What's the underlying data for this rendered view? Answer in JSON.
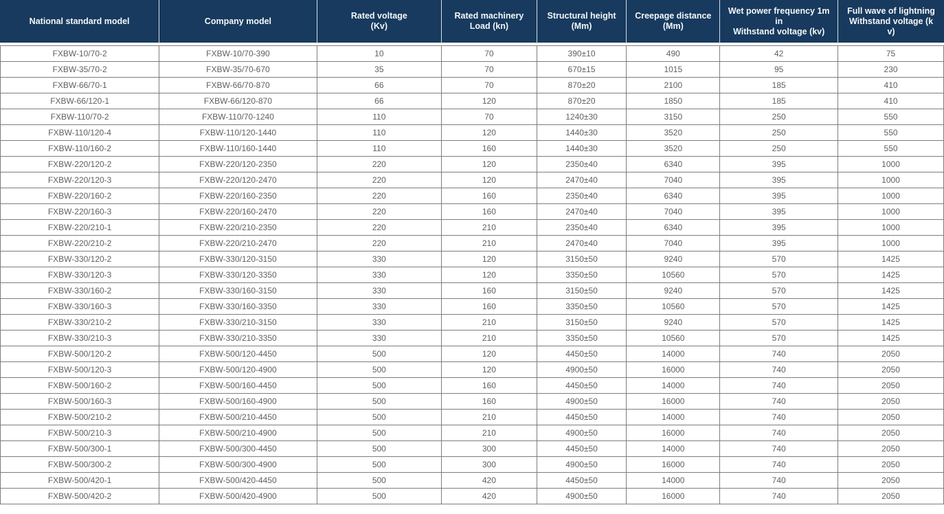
{
  "colors": {
    "header_bg": "#173a5e",
    "header_text": "#f4f7fa",
    "body_text": "#5f6063",
    "grid_border": "#7d7d7d",
    "row_bg": "#ffffff"
  },
  "table": {
    "columns": [
      "National standard model",
      "Company model",
      "Rated voltage\n(Kv)",
      "Rated machinery\nLoad (kn)",
      "Structural height\n(Mm)",
      "Creepage distance\n(Mm)",
      "Wet power frequency 1m\nin\nWithstand voltage (kv)",
      "Full wave of lightning\nWithstand voltage (k\nv)"
    ],
    "rows": [
      [
        "FXBW-10/70-2",
        "FXBW-10/70-390",
        "10",
        "70",
        "390±10",
        "490",
        "42",
        "75"
      ],
      [
        "FXBW-35/70-2",
        "FXBW-35/70-670",
        "35",
        "70",
        "670±15",
        "1015",
        "95",
        "230"
      ],
      [
        "FXBW-66/70-1",
        "FXBW-66/70-870",
        "66",
        "70",
        "870±20",
        "2100",
        "185",
        "410"
      ],
      [
        "FXBW-66/120-1",
        "FXBW-66/120-870",
        "66",
        "120",
        "870±20",
        "1850",
        "185",
        "410"
      ],
      [
        "FXBW-110/70-2",
        "FXBW-110/70-1240",
        "110",
        "70",
        "1240±30",
        "3150",
        "250",
        "550"
      ],
      [
        "FXBW-110/120-4",
        "FXBW-110/120-1440",
        "110",
        "120",
        "1440±30",
        "3520",
        "250",
        "550"
      ],
      [
        "FXBW-110/160-2",
        "FXBW-110/160-1440",
        "110",
        "160",
        "1440±30",
        "3520",
        "250",
        "550"
      ],
      [
        "FXBW-220/120-2",
        "FXBW-220/120-2350",
        "220",
        "120",
        "2350±40",
        "6340",
        "395",
        "1000"
      ],
      [
        "FXBW-220/120-3",
        "FXBW-220/120-2470",
        "220",
        "120",
        "2470±40",
        "7040",
        "395",
        "1000"
      ],
      [
        "FXBW-220/160-2",
        "FXBW-220/160-2350",
        "220",
        "160",
        "2350±40",
        "6340",
        "395",
        "1000"
      ],
      [
        "FXBW-220/160-3",
        "FXBW-220/160-2470",
        "220",
        "160",
        "2470±40",
        "7040",
        "395",
        "1000"
      ],
      [
        "FXBW-220/210-1",
        "FXBW-220/210-2350",
        "220",
        "210",
        "2350±40",
        "6340",
        "395",
        "1000"
      ],
      [
        "FXBW-220/210-2",
        "FXBW-220/210-2470",
        "220",
        "210",
        "2470±40",
        "7040",
        "395",
        "1000"
      ],
      [
        "FXBW-330/120-2",
        "FXBW-330/120-3150",
        "330",
        "120",
        "3150±50",
        "9240",
        "570",
        "1425"
      ],
      [
        "FXBW-330/120-3",
        "FXBW-330/120-3350",
        "330",
        "120",
        "3350±50",
        "10560",
        "570",
        "1425"
      ],
      [
        "FXBW-330/160-2",
        "FXBW-330/160-3150",
        "330",
        "160",
        "3150±50",
        "9240",
        "570",
        "1425"
      ],
      [
        "FXBW-330/160-3",
        "FXBW-330/160-3350",
        "330",
        "160",
        "3350±50",
        "10560",
        "570",
        "1425"
      ],
      [
        "FXBW-330/210-2",
        "FXBW-330/210-3150",
        "330",
        "210",
        "3150±50",
        "9240",
        "570",
        "1425"
      ],
      [
        "FXBW-330/210-3",
        "FXBW-330/210-3350",
        "330",
        "210",
        "3350±50",
        "10560",
        "570",
        "1425"
      ],
      [
        "FXBW-500/120-2",
        "FXBW-500/120-4450",
        "500",
        "120",
        "4450±50",
        "14000",
        "740",
        "2050"
      ],
      [
        "FXBW-500/120-3",
        "FXBW-500/120-4900",
        "500",
        "120",
        "4900±50",
        "16000",
        "740",
        "2050"
      ],
      [
        "FXBW-500/160-2",
        "FXBW-500/160-4450",
        "500",
        "160",
        "4450±50",
        "14000",
        "740",
        "2050"
      ],
      [
        "FXBW-500/160-3",
        "FXBW-500/160-4900",
        "500",
        "160",
        "4900±50",
        "16000",
        "740",
        "2050"
      ],
      [
        "FXBW-500/210-2",
        "FXBW-500/210-4450",
        "500",
        "210",
        "4450±50",
        "14000",
        "740",
        "2050"
      ],
      [
        "FXBW-500/210-3",
        "FXBW-500/210-4900",
        "500",
        "210",
        "4900±50",
        "16000",
        "740",
        "2050"
      ],
      [
        "FXBW-500/300-1",
        "FXBW-500/300-4450",
        "500",
        "300",
        "4450±50",
        "14000",
        "740",
        "2050"
      ],
      [
        "FXBW-500/300-2",
        "FXBW-500/300-4900",
        "500",
        "300",
        "4900±50",
        "16000",
        "740",
        "2050"
      ],
      [
        "FXBW-500/420-1",
        "FXBW-500/420-4450",
        "500",
        "420",
        "4450±50",
        "14000",
        "740",
        "2050"
      ],
      [
        "FXBW-500/420-2",
        "FXBW-500/420-4900",
        "500",
        "420",
        "4900±50",
        "16000",
        "740",
        "2050"
      ]
    ]
  }
}
